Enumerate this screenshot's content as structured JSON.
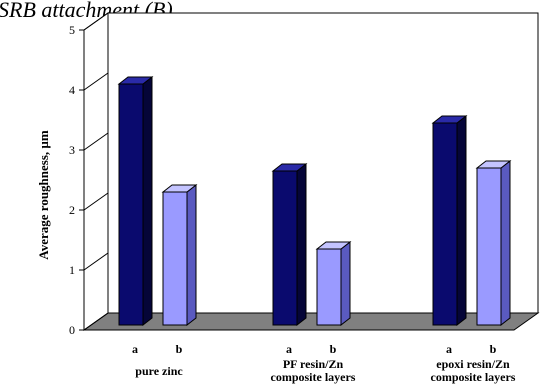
{
  "caption": "SRB attachment (B)",
  "chart_data": {
    "type": "bar",
    "title": "",
    "ylabel": "Average roughness, µm",
    "xlabel": "",
    "ylim": [
      0,
      5
    ],
    "yticks": [
      "0",
      "1",
      "2",
      "3",
      "4",
      "5"
    ],
    "grid": false,
    "style": "3d",
    "groups": [
      {
        "label_lines": [
          "pure zinc"
        ],
        "bars": [
          {
            "label": "a",
            "value": 4.1
          },
          {
            "label": "b",
            "value": 2.3
          }
        ]
      },
      {
        "label_lines": [
          "PF resin/Zn",
          "composite layers"
        ],
        "bars": [
          {
            "label": "a",
            "value": 2.65
          },
          {
            "label": "b",
            "value": 1.35
          }
        ]
      },
      {
        "label_lines": [
          "epoxi resin/Zn",
          "composite layers"
        ],
        "bars": [
          {
            "label": "a",
            "value": 3.45
          },
          {
            "label": "b",
            "value": 2.7
          }
        ]
      }
    ],
    "colors": {
      "a": "#0a0a6e",
      "b": "#9a9aff",
      "floor": "#808080",
      "wall": "#ffffff"
    }
  }
}
